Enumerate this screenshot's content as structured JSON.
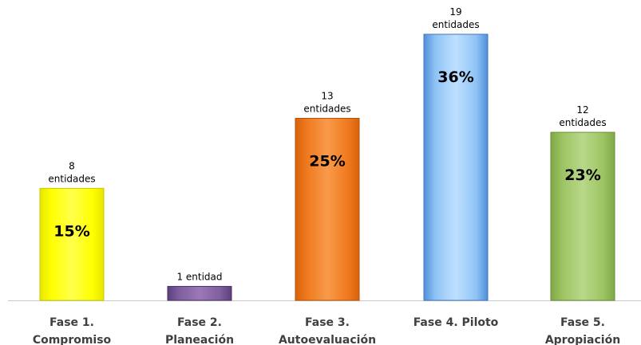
{
  "chart_data": {
    "type": "bar",
    "title": "",
    "xlabel": "",
    "ylabel": "",
    "ylim": [
      0,
      19
    ],
    "grid": false,
    "legend": "none",
    "categories": [
      [
        "Fase 1.",
        "Compromiso"
      ],
      [
        "Fase 2.",
        "Planeación"
      ],
      [
        "Fase 3.",
        "Autoevaluación"
      ],
      [
        "Fase 4. Piloto"
      ],
      [
        "Fase 5.",
        "Apropiación"
      ]
    ],
    "values": [
      8,
      1,
      13,
      19,
      12
    ],
    "value_labels": [
      [
        "8",
        "entidades"
      ],
      [
        "1 entidad"
      ],
      [
        "13",
        "entidades"
      ],
      [
        "19",
        "entidades"
      ],
      [
        "12",
        "entidades"
      ]
    ],
    "percent_labels": [
      "15%",
      "",
      "25%",
      "36%",
      "23%"
    ],
    "colors": [
      {
        "light": "#FFFF4D",
        "base": "#FFFF00",
        "dark": "#E6E600",
        "edge": "#C8C800"
      },
      {
        "light": "#9B78B8",
        "base": "#7F5FA0",
        "dark": "#5E3F7D",
        "edge": "#4A2F66"
      },
      {
        "light": "#F89A4A",
        "base": "#F07A1E",
        "dark": "#D7630C",
        "edge": "#B55208"
      },
      {
        "light": "#BFE0FF",
        "base": "#8FC3F5",
        "dark": "#4F8FD8",
        "edge": "#3F78BC"
      },
      {
        "light": "#B8D88A",
        "base": "#9DC463",
        "dark": "#7FA846",
        "edge": "#6A8F38"
      }
    ],
    "axis_color": "#C8C8C8"
  }
}
